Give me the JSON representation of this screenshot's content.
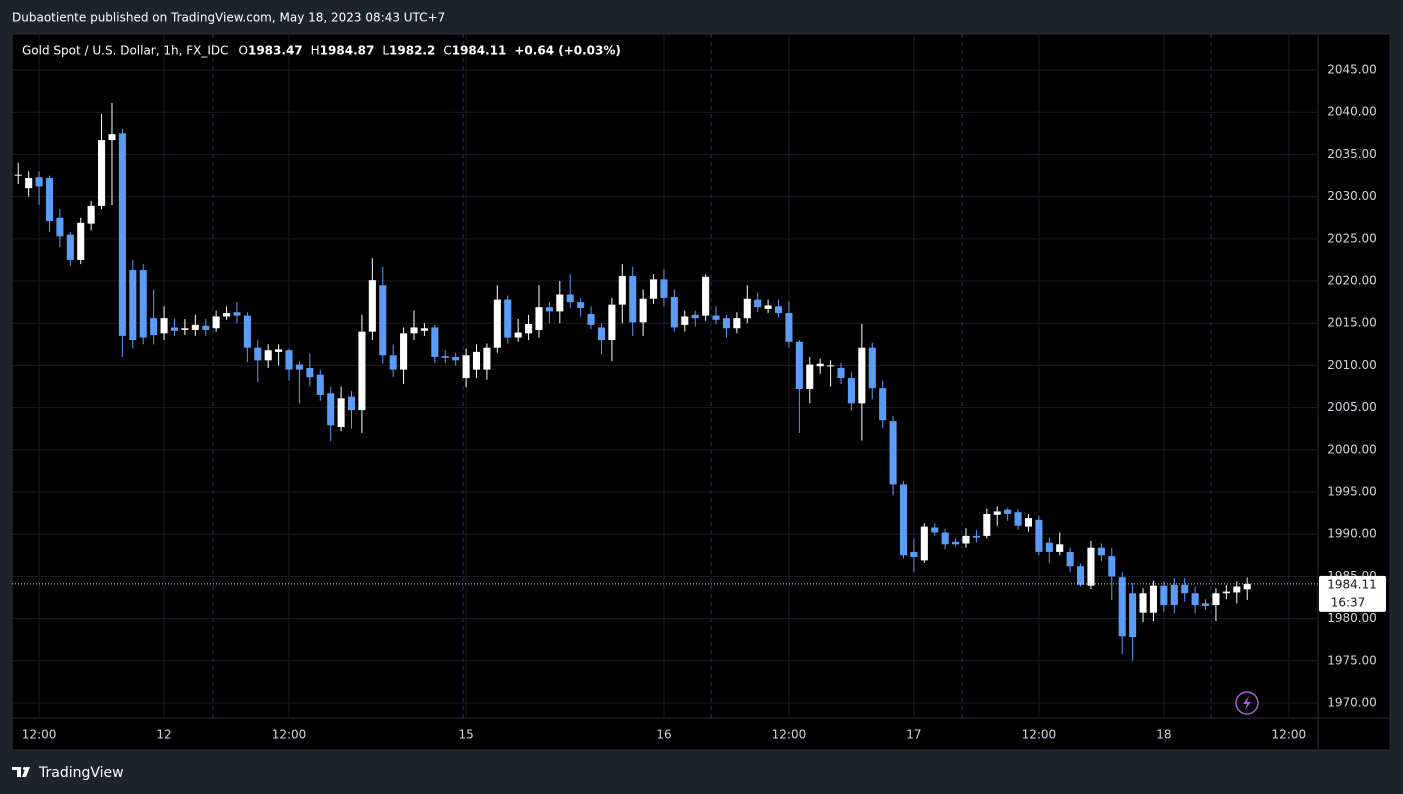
{
  "publisher": "Dubaotiente published on TradingView.com, May 18, 2023 08:43 UTC+7",
  "footer": "TradingView",
  "chart_data": {
    "type": "candlestick",
    "title": "Gold Spot / U.S. Dollar, 1h, FX_IDC",
    "ohlc_legend": [
      {
        "label": "O",
        "value": 1983.47
      },
      {
        "label": "H",
        "value": 1984.87
      },
      {
        "label": "L",
        "value": 1982.2
      },
      {
        "label": "C",
        "value": 1984.11
      }
    ],
    "change": "+0.64 (+0.03%)",
    "last_price": 1984.11,
    "countdown": "16:37",
    "up_color": "#ffffff",
    "down_color": "#5b9cf6",
    "open": [
      2032.5,
      2031,
      2032.3,
      2032.2,
      2027.5,
      2025.5,
      2022.5,
      2026.8,
      2028.9,
      2036.7,
      2037.5,
      2021.3,
      2021.3,
      2015.6,
      2013.8,
      2014.5,
      2014.2,
      2014.2,
      2014.7,
      2014.4,
      2015.8,
      2016.3,
      2015.9,
      2012.1,
      2010.6,
      2011.6,
      2011.8,
      2010.1,
      2009.7,
      2008.9,
      2006.7,
      2002.7,
      2006.3,
      2004.7,
      2014,
      2019.5,
      2011.2,
      2009.5,
      2013.8,
      2014.1,
      2014.5,
      2011.1,
      2011,
      2008.5,
      2009.5,
      2009.5,
      2012.1,
      2017.8,
      2013.3,
      2013.8,
      2014.2,
      2016.9,
      2016.4,
      2018.4,
      2017.5,
      2016.1,
      2014.5,
      2013,
      2017.2,
      2020.6,
      2015.1,
      2017.9,
      2020.2,
      2018.1,
      2014.8,
      2016,
      2015.9,
      2015.9,
      2015.6,
      2014.4,
      2015.6,
      2017.8,
      2016.7,
      2017,
      2016.2,
      2012.8,
      2007.2,
      2009.9,
      2009.9,
      2009.7,
      2008.5,
      2005.5,
      2012.1,
      2007.3,
      2003.4,
      1995.9,
      1987.9,
      1986.9,
      1990.8,
      1990.2,
      1989.1,
      1988.9,
      1989.8,
      1989.8,
      1992.3,
      1992.9,
      1992.6,
      1990.9,
      1991.7,
      1989,
      1987.9,
      1987.9,
      1986.2,
      1983.9,
      1988.4,
      1987.4,
      1984.9,
      1983,
      1980.7,
      1980.7,
      1983.9,
      1984,
      1984,
      1983,
      1981.8,
      1981.6,
      1983,
      1983.1,
      1983.47
    ],
    "high": [
      2034,
      2033,
      2033,
      2032.5,
      2028.5,
      2025.8,
      2027.5,
      2029.5,
      2039.8,
      2041.1,
      2038,
      2022.5,
      2022,
      2019,
      2017,
      2015.5,
      2015.5,
      2016,
      2015.5,
      2016.5,
      2017,
      2017.5,
      2016.3,
      2013,
      2012.5,
      2012.5,
      2012,
      2010.5,
      2011.4,
      2009.5,
      2007.5,
      2007.5,
      2007,
      2016,
      2022.7,
      2021.7,
      2012.5,
      2014.5,
      2016.5,
      2015,
      2014.8,
      2011.8,
      2011.5,
      2012,
      2012.5,
      2012.6,
      2019.5,
      2018.3,
      2015.5,
      2016,
      2019.5,
      2017.5,
      2020,
      2020.8,
      2018,
      2017,
      2015,
      2018,
      2022,
      2021.7,
      2019,
      2020.8,
      2021.4,
      2019,
      2016.5,
      2016.5,
      2020.8,
      2017,
      2016,
      2016.3,
      2019.5,
      2018.6,
      2017.8,
      2017.8,
      2017.6,
      2013,
      2011,
      2010.8,
      2010.6,
      2010.3,
      2009.2,
      2014.9,
      2012.7,
      2008.2,
      2004,
      1996.3,
      1989.5,
      1991.3,
      1991.3,
      1990.6,
      1989.5,
      1990.7,
      1990.5,
      1993,
      1993.3,
      1993.1,
      1993,
      1992.4,
      1992.2,
      1989.6,
      1990.2,
      1988.4,
      1986.5,
      1989.2,
      1988.9,
      1988.4,
      1985.5,
      1984.2,
      1983.6,
      1984.5,
      1984.4,
      1984.8,
      1984.8,
      1983.8,
      1982.3,
      1983.6,
      1984,
      1984.4,
      1984.87
    ],
    "low": [
      2031.5,
      2030,
      2029,
      2025.8,
      2024,
      2021.8,
      2022,
      2026,
      2028.5,
      2029,
      2011,
      2012,
      2012.5,
      2012.5,
      2013,
      2013.5,
      2013.6,
      2013.5,
      2013.5,
      2014,
      2015.4,
      2015,
      2010.4,
      2008,
      2009.7,
      2010,
      2008.2,
      2005.5,
      2007.5,
      2005.8,
      2001,
      2002.2,
      2002.5,
      2002,
      2013,
      2010.2,
      2008.6,
      2007.8,
      2013,
      2013.5,
      2010.3,
      2010.3,
      2010,
      2007.4,
      2008.5,
      2008.3,
      2011.5,
      2012.6,
      2012.8,
      2013,
      2013.3,
      2015,
      2015,
      2016.8,
      2015.8,
      2014.3,
      2011.3,
      2010.5,
      2015,
      2013.5,
      2013.5,
      2017.3,
      2017,
      2014,
      2014,
      2014.6,
      2015.3,
      2014.9,
      2013.3,
      2013.8,
      2015,
      2016.3,
      2016.2,
      2015.7,
      2012.1,
      2002,
      2005.5,
      2009,
      2007.5,
      2007.8,
      2004.6,
      2001.1,
      2006,
      2002.6,
      1994.6,
      1987.1,
      1985.5,
      1986.6,
      1989.8,
      1988.2,
      1988.5,
      1988.4,
      1989,
      1989.5,
      1991,
      1991.6,
      1990.5,
      1990.3,
      1987.5,
      1986.6,
      1987.5,
      1985.5,
      1983.8,
      1983.5,
      1986.8,
      1982.2,
      1975.8,
      1975,
      1979.6,
      1979.7,
      1980.8,
      1980.6,
      1982,
      1980.6,
      1981.1,
      1979.7,
      1982.3,
      1981.8,
      1982.2
    ],
    "close": [
      2032.6,
      2032.2,
      2031.2,
      2027.1,
      2025.3,
      2022.5,
      2026.9,
      2028.9,
      2036.7,
      2037.4,
      2013.5,
      2013,
      2013.3,
      2013.6,
      2015.6,
      2014.1,
      2014.4,
      2014.8,
      2014.2,
      2015.8,
      2016.2,
      2015.9,
      2012.1,
      2010.6,
      2011.8,
      2011.9,
      2009.5,
      2009.5,
      2008.6,
      2006.5,
      2002.9,
      2006.1,
      2004.7,
      2014,
      2020.1,
      2011.2,
      2009.5,
      2013.8,
      2014.5,
      2014.4,
      2011,
      2010.9,
      2010.6,
      2011.2,
      2011.6,
      2012.1,
      2017.8,
      2013.3,
      2013.9,
      2014.9,
      2016.9,
      2016.4,
      2018.4,
      2017.5,
      2016.8,
      2014.8,
      2013,
      2017.2,
      2020.6,
      2015.1,
      2017.9,
      2020.2,
      2018,
      2014.5,
      2015.8,
      2015.6,
      2020.5,
      2015.4,
      2014.4,
      2015.6,
      2017.9,
      2016.9,
      2017.1,
      2016.2,
      2012.8,
      2007.2,
      2010.1,
      2010.2,
      2010,
      2008.5,
      2005.5,
      2012.1,
      2007.3,
      2003.5,
      1995.9,
      1987.5,
      1987.3,
      1990.9,
      1990.2,
      1988.8,
      1988.8,
      1989.8,
      1989.6,
      1992.4,
      1992.7,
      1992.4,
      1991,
      1991.9,
      1987.9,
      1987.9,
      1988.8,
      1986.2,
      1984,
      1988.4,
      1987.5,
      1985,
      1977.9,
      1977.8,
      1983,
      1983.9,
      1981.6,
      1981.6,
      1983,
      1981.6,
      1981.5,
      1983,
      1983.2,
      1983.8,
      1984.11
    ],
    "xlim": [
      -0.6,
      124.8
    ],
    "xticks": [
      {
        "value": 2,
        "label": "12:00"
      },
      {
        "value": 14,
        "label": "12"
      },
      {
        "value": 26,
        "label": "12:00"
      },
      {
        "value": 43,
        "label": "15"
      },
      {
        "value": 62,
        "label": "16"
      },
      {
        "value": 74,
        "label": "12:00"
      },
      {
        "value": 86,
        "label": "17"
      },
      {
        "value": 98,
        "label": "12:00"
      },
      {
        "value": 110,
        "label": "18"
      },
      {
        "value": 122,
        "label": "12:00"
      }
    ],
    "ylim": [
      1968.22,
      2049.27
    ],
    "yticks": [
      {
        "value": 1970,
        "label": "1970.00"
      },
      {
        "value": 1975,
        "label": "1975.00"
      },
      {
        "value": 1980,
        "label": "1980.00"
      },
      {
        "value": 1985,
        "label": "1985.00"
      },
      {
        "value": 1990,
        "label": "1990.00"
      },
      {
        "value": 1995,
        "label": "1995.00"
      },
      {
        "value": 2000,
        "label": "2000.00"
      },
      {
        "value": 2005,
        "label": "2005.00"
      },
      {
        "value": 2010,
        "label": "2010.00"
      },
      {
        "value": 2015,
        "label": "2015.00"
      },
      {
        "value": 2020,
        "label": "2020.00"
      },
      {
        "value": 2025,
        "label": "2025.00"
      },
      {
        "value": 2030,
        "label": "2030.00"
      },
      {
        "value": 2035,
        "label": "2035.00"
      },
      {
        "value": 2040,
        "label": "2040.00"
      },
      {
        "value": 2045,
        "label": "2045.00"
      }
    ],
    "grid": true
  }
}
